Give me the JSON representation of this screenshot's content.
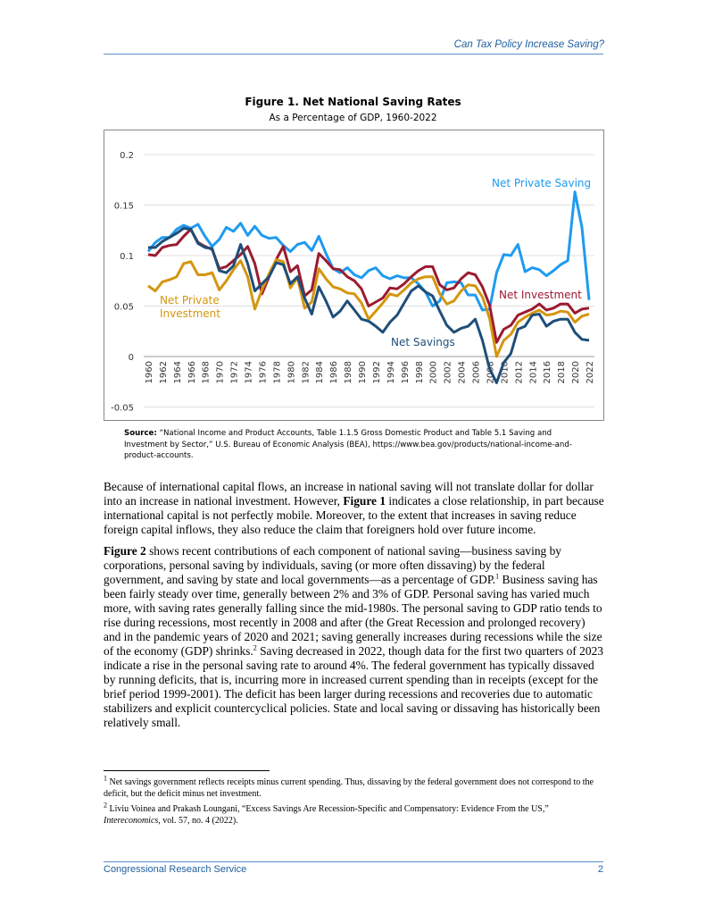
{
  "header": {
    "running_title": "Can Tax Policy Increase Saving?"
  },
  "figure": {
    "title": "Figure 1. Net National Saving Rates",
    "subtitle": "As a Percentage of GDP, 1960-2022",
    "source_label": "Source:",
    "source_text": " “National Income and Product Accounts, Table 1.1.5 Gross Domestic Product and Table 5.1 Saving and Investment by Sector,” U.S. Bureau of Economic Analysis (BEA), https://www.bea.gov/products/national-income-and-product-accounts."
  },
  "chart_data": {
    "type": "line",
    "title": "Figure 1. Net National Saving Rates",
    "subtitle": "As a Percentage of GDP, 1960-2022",
    "xlabel": "",
    "ylabel": "",
    "ylim": [
      -0.05,
      0.2
    ],
    "yticks": [
      "0.2",
      "0.15",
      "0.1",
      "0.05",
      "0",
      "-0.05"
    ],
    "ytick_values": [
      0.2,
      0.15,
      0.1,
      0.05,
      0,
      -0.05
    ],
    "x_start": 1960,
    "x_end": 2022,
    "xtick_step": 2,
    "grid": true,
    "series": [
      {
        "name": "Net Private Saving",
        "label_lines": [
          "Net Private Saving"
        ],
        "color": "#1e9bf0",
        "values": [
          0.104,
          0.113,
          0.118,
          0.118,
          0.126,
          0.13,
          0.127,
          0.131,
          0.119,
          0.109,
          0.116,
          0.128,
          0.124,
          0.132,
          0.12,
          0.129,
          0.12,
          0.117,
          0.118,
          0.11,
          0.104,
          0.111,
          0.113,
          0.105,
          0.119,
          0.102,
          0.087,
          0.083,
          0.088,
          0.081,
          0.078,
          0.085,
          0.088,
          0.08,
          0.077,
          0.08,
          0.078,
          0.078,
          0.072,
          0.064,
          0.05,
          0.055,
          0.073,
          0.074,
          0.073,
          0.061,
          0.061,
          0.046,
          0.047,
          0.083,
          0.101,
          0.1,
          0.111,
          0.084,
          0.088,
          0.086,
          0.08,
          0.085,
          0.091,
          0.095,
          0.163,
          0.128,
          0.056
        ]
      },
      {
        "name": "Net Investment",
        "label_lines": [
          "Net Investment"
        ],
        "color": "#9b1b30",
        "values": [
          0.101,
          0.1,
          0.108,
          0.11,
          0.111,
          0.119,
          0.126,
          0.113,
          0.109,
          0.106,
          0.087,
          0.089,
          0.095,
          0.101,
          0.109,
          0.092,
          0.062,
          0.079,
          0.096,
          0.109,
          0.084,
          0.09,
          0.06,
          0.066,
          0.102,
          0.095,
          0.087,
          0.086,
          0.079,
          0.075,
          0.067,
          0.05,
          0.054,
          0.058,
          0.068,
          0.067,
          0.072,
          0.079,
          0.085,
          0.089,
          0.089,
          0.071,
          0.066,
          0.068,
          0.077,
          0.083,
          0.081,
          0.069,
          0.051,
          0.014,
          0.027,
          0.031,
          0.041,
          0.044,
          0.047,
          0.052,
          0.046,
          0.048,
          0.052,
          0.052,
          0.043,
          0.047,
          0.048
        ]
      },
      {
        "name": "Net Private Investment",
        "label_lines": [
          "Net Private",
          "Investment"
        ],
        "color": "#d4960f",
        "values": [
          0.07,
          0.065,
          0.074,
          0.076,
          0.079,
          0.092,
          0.094,
          0.081,
          0.081,
          0.083,
          0.066,
          0.075,
          0.086,
          0.095,
          0.079,
          0.047,
          0.066,
          0.082,
          0.096,
          0.094,
          0.068,
          0.078,
          0.048,
          0.054,
          0.087,
          0.077,
          0.069,
          0.067,
          0.063,
          0.062,
          0.053,
          0.037,
          0.045,
          0.053,
          0.062,
          0.06,
          0.066,
          0.073,
          0.077,
          0.079,
          0.079,
          0.062,
          0.052,
          0.055,
          0.065,
          0.071,
          0.07,
          0.059,
          0.038,
          0.0,
          0.016,
          0.022,
          0.034,
          0.039,
          0.043,
          0.046,
          0.041,
          0.042,
          0.045,
          0.044,
          0.034,
          0.04,
          0.042
        ]
      },
      {
        "name": "Net Savings",
        "label_lines": [
          "Net Savings"
        ],
        "color": "#1f4e79",
        "values": [
          0.108,
          0.108,
          0.114,
          0.118,
          0.122,
          0.127,
          0.126,
          0.112,
          0.108,
          0.107,
          0.085,
          0.083,
          0.09,
          0.111,
          0.092,
          0.065,
          0.072,
          0.079,
          0.093,
          0.091,
          0.072,
          0.079,
          0.058,
          0.042,
          0.069,
          0.055,
          0.039,
          0.045,
          0.055,
          0.046,
          0.037,
          0.035,
          0.03,
          0.024,
          0.034,
          0.041,
          0.053,
          0.065,
          0.07,
          0.064,
          0.06,
          0.045,
          0.031,
          0.024,
          0.028,
          0.03,
          0.037,
          0.016,
          -0.012,
          -0.026,
          -0.006,
          0.003,
          0.027,
          0.03,
          0.041,
          0.042,
          0.03,
          0.035,
          0.037,
          0.037,
          0.024,
          0.017,
          0.016
        ]
      }
    ]
  },
  "body": {
    "p1": "Because of international capital flows, an increase in national saving will not translate dollar for dollar into an increase in national investment. However, ",
    "p1_bold": "Figure 1",
    "p1_rest": " indicates a close relationship, in part because international capital is not perfectly mobile. Moreover, to the extent that increases in saving reduce foreign capital inflows, they also reduce the claim that foreigners hold over future income.",
    "p2_bold": "Figure 2",
    "p2_a": " shows recent contributions of each component of national saving—business saving by corporations, personal saving by individuals, saving (or more often dissaving) by the federal government, and saving by state and local governments—as a percentage of GDP.",
    "p2_sup1": "1",
    "p2_b": " Business saving has been fairly steady over time, generally between 2% and 3% of GDP. Personal saving has varied much more, with saving rates generally falling since the mid-1980s. The personal saving to GDP ratio tends to rise during recessions, most recently in 2008 and after (the Great Recession and prolonged recovery) and in the pandemic years of 2020 and 2021; saving generally increases during recessions while the size of the economy (GDP) shrinks.",
    "p2_sup2": "2",
    "p2_c": " Saving decreased in 2022, though data for the first two quarters of 2023 indicate a rise in the personal saving rate to around 4%. The federal government has typically dissaved by running deficits, that is, incurring more in increased current spending than in receipts (except for the brief period 1999-2001). The deficit has been larger during recessions and recoveries due to automatic stabilizers and explicit countercyclical policies. State and local saving or dissaving has historically been relatively small."
  },
  "footnotes": [
    {
      "num": "1",
      "text": " Net savings government reflects receipts minus current spending. Thus, dissaving by the federal government does not correspond to the deficit, but the deficit minus net investment."
    },
    {
      "num": "2",
      "text": " Liviu Voinea and Prakash Loungani, “Excess Savings Are Recession-Specific and Compensatory: Evidence From the US,” ",
      "italic": "Intereconomics",
      "after": ", vol. 57, no. 4 (2022)."
    }
  ],
  "footer": {
    "left": "Congressional Research Service",
    "page": "2"
  }
}
